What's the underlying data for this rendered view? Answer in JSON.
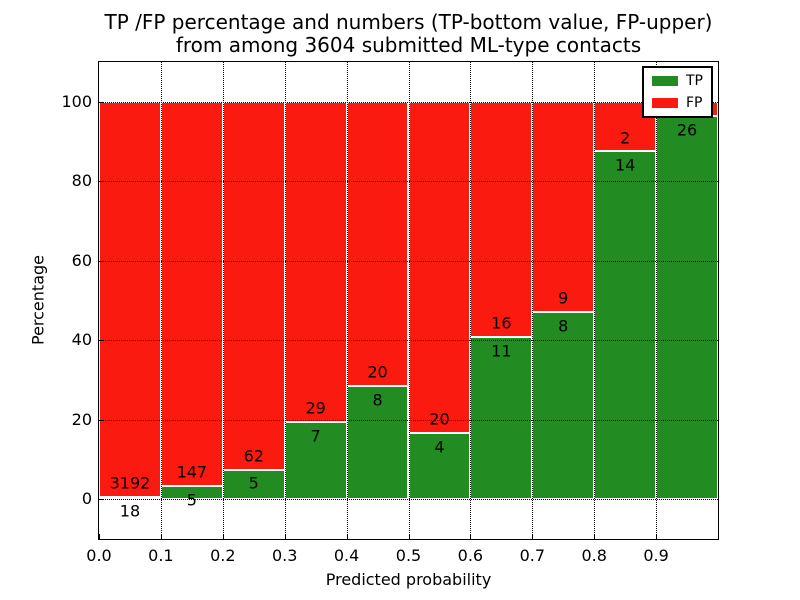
{
  "title_line1": "TP /FP percentage and numbers (TP-bottom value, FP-upper)",
  "title_line2": "from among 3604 submitted ML-type contacts",
  "axes": {
    "xlabel": "Predicted probability",
    "ylabel": "Percentage"
  },
  "legend": {
    "tp_label": "TP",
    "fp_label": "FP"
  },
  "colors": {
    "tp": "#228b22",
    "fp": "#fa1a0f",
    "grid": "#000000",
    "bar_edge": "#ffffff",
    "text": "#000000"
  },
  "chart_data": {
    "type": "bar",
    "stacked": true,
    "normalized_to_percent": true,
    "title": "TP /FP percentage and numbers (TP-bottom value, FP-upper) from among 3604 submitted ML-type contacts",
    "xlabel": "Predicted probability",
    "ylabel": "Percentage",
    "total_contacts": 3604,
    "xlim": [
      0.0,
      1.0
    ],
    "ylim": [
      -10,
      110
    ],
    "bin_width": 0.1,
    "xticks": [
      "0.0",
      "0.1",
      "0.2",
      "0.3",
      "0.4",
      "0.5",
      "0.6",
      "0.7",
      "0.8",
      "0.9"
    ],
    "yticks": [
      0,
      20,
      40,
      60,
      80,
      100
    ],
    "grid": true,
    "legend_position": "upper right",
    "series": [
      {
        "name": "TP",
        "values": [
          18,
          5,
          5,
          7,
          8,
          4,
          11,
          8,
          14,
          26
        ]
      },
      {
        "name": "FP",
        "values": [
          3192,
          147,
          62,
          29,
          20,
          20,
          16,
          9,
          2,
          1
        ]
      }
    ],
    "bins": [
      {
        "range": "0.0-0.1",
        "tp": 18,
        "fp": 3192,
        "tp_label": "18",
        "fp_label": "3192"
      },
      {
        "range": "0.1-0.2",
        "tp": 5,
        "fp": 147,
        "tp_label": "5",
        "fp_label": "147"
      },
      {
        "range": "0.2-0.3",
        "tp": 5,
        "fp": 62,
        "tp_label": "5",
        "fp_label": "62"
      },
      {
        "range": "0.3-0.4",
        "tp": 7,
        "fp": 29,
        "tp_label": "7",
        "fp_label": "29"
      },
      {
        "range": "0.4-0.5",
        "tp": 8,
        "fp": 20,
        "tp_label": "8",
        "fp_label": "20"
      },
      {
        "range": "0.5-0.6",
        "tp": 4,
        "fp": 20,
        "tp_label": "4",
        "fp_label": "20"
      },
      {
        "range": "0.6-0.7",
        "tp": 11,
        "fp": 16,
        "tp_label": "11",
        "fp_label": "16"
      },
      {
        "range": "0.7-0.8",
        "tp": 8,
        "fp": 9,
        "tp_label": "8",
        "fp_label": "9"
      },
      {
        "range": "0.8-0.9",
        "tp": 14,
        "fp": 2,
        "tp_label": "14",
        "fp_label": "2"
      },
      {
        "range": "0.9-1.0",
        "tp": 26,
        "fp": 1,
        "tp_label": "26",
        "fp_label": ""
      }
    ]
  }
}
